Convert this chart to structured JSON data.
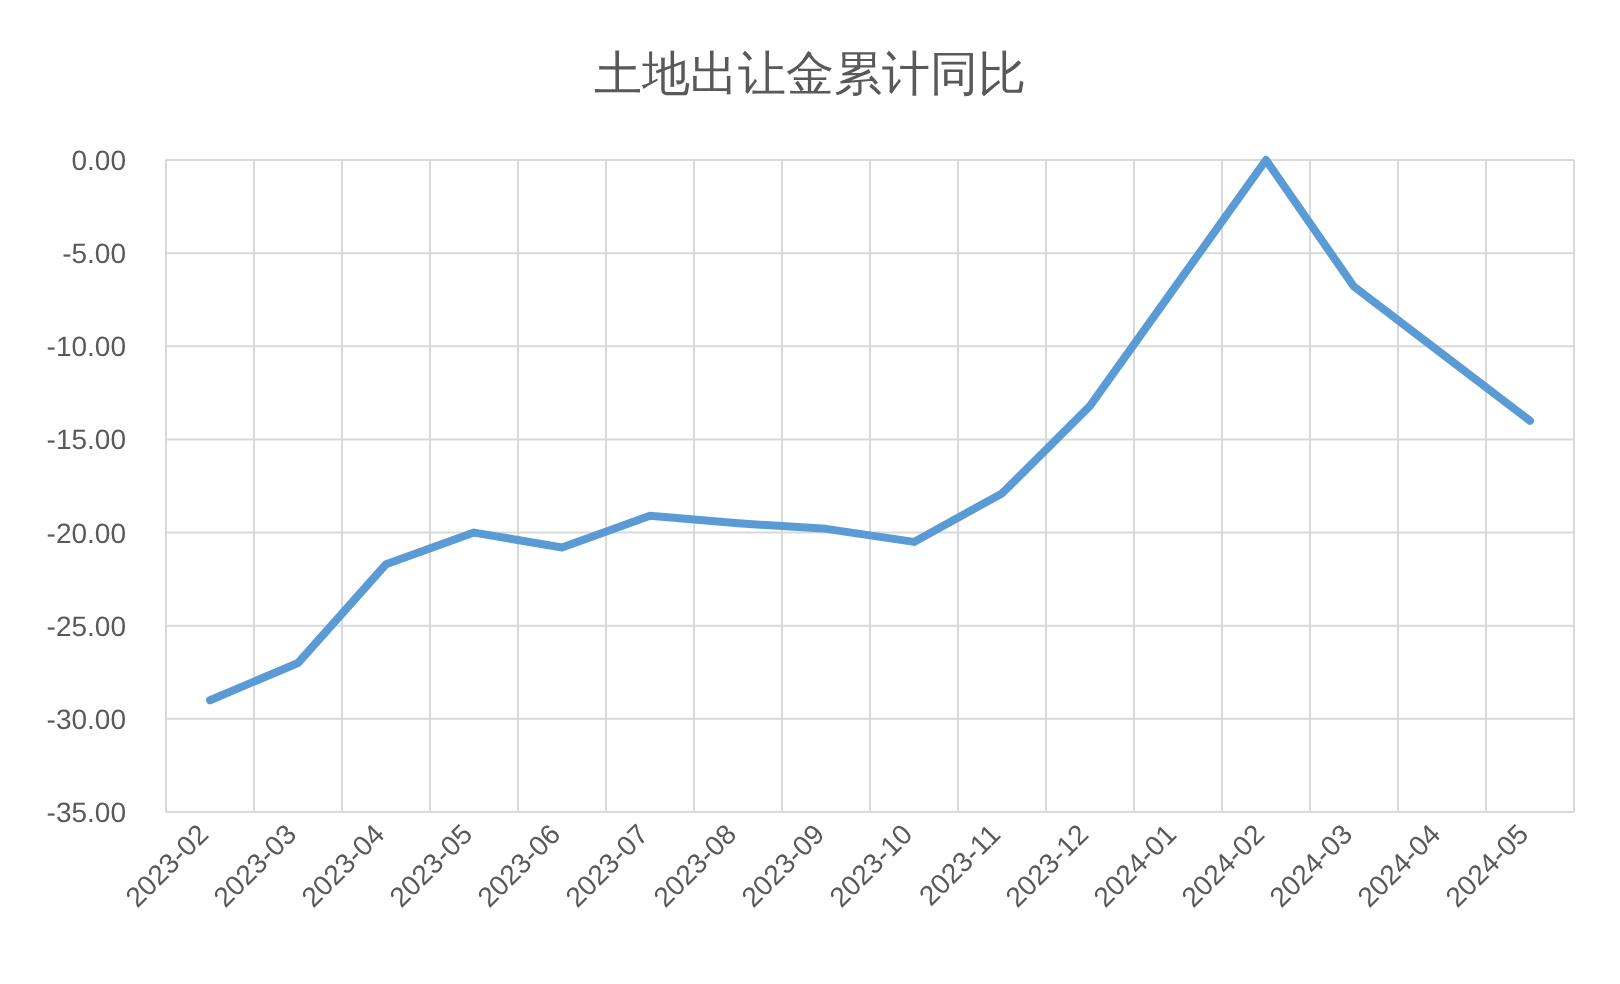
{
  "chart_data": {
    "type": "line",
    "title": "土地出让金累计同比",
    "categories": [
      "2023-02",
      "2023-03",
      "2023-04",
      "2023-05",
      "2023-06",
      "2023-07",
      "2023-08",
      "2023-09",
      "2023-10",
      "2023-11",
      "2023-12",
      "2024-01",
      "2024-02",
      "2024-03",
      "2024-04",
      "2024-05"
    ],
    "series": [
      {
        "color": "#5b9bd5",
        "values": [
          -29.0,
          -27.0,
          -21.7,
          -20.0,
          -20.8,
          -19.1,
          -19.5,
          -19.8,
          -20.5,
          -17.9,
          -13.2,
          -6.6,
          0.0,
          -6.8,
          -10.4,
          -14.0
        ]
      }
    ],
    "ylim": [
      -35,
      0
    ],
    "yticks": [
      {
        "value": 0,
        "label": "0.00"
      },
      {
        "value": -5,
        "label": "-5.00"
      },
      {
        "value": -10,
        "label": "-10.00"
      },
      {
        "value": -15,
        "label": "-15.00"
      },
      {
        "value": -20,
        "label": "-20.00"
      },
      {
        "value": -25,
        "label": "-25.00"
      },
      {
        "value": -30,
        "label": "-30.00"
      },
      {
        "value": -35,
        "label": "-35.00"
      }
    ],
    "grid": true,
    "marker": "none",
    "line_style": "solid"
  }
}
